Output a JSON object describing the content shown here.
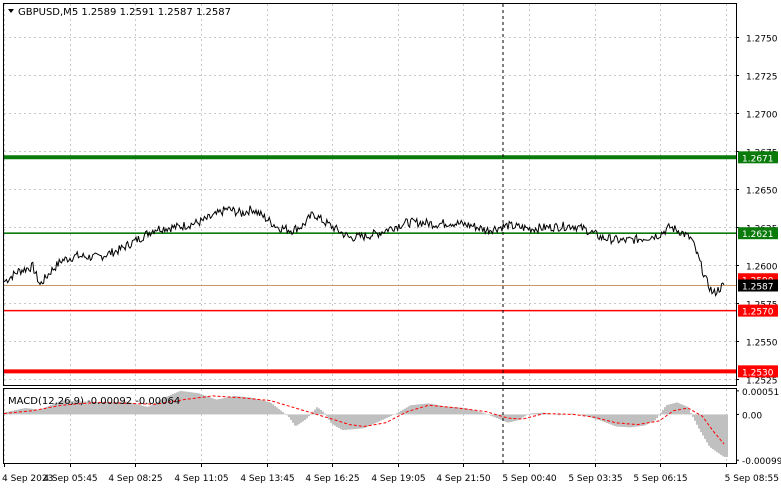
{
  "header": {
    "symbol": "GBPUSD,M5",
    "open": "1.2589",
    "high": "1.2591",
    "low": "1.2587",
    "close": "1.2587"
  },
  "colors": {
    "background": "#ffffff",
    "price_line": "#000000",
    "grid": "#c8c8c8",
    "green_level": "#0a7a0a",
    "red_level": "#ff0000",
    "current_price_line": "#c89a6a",
    "macd_histogram": "#c0c0c0",
    "macd_signal": "#ff0000"
  },
  "chart_data": [
    {
      "type": "line",
      "symbol": "GBPUSD,M5",
      "ylim": [
        1.2521,
        1.2772
      ],
      "y_ticks": [
        "1.2750",
        "1.2725",
        "1.2700",
        "1.2675",
        "1.2650",
        "1.2625",
        "1.2600",
        "1.2575",
        "1.2550",
        "1.2525"
      ],
      "x_ticks": [
        "4 Sep 2023",
        "4 Sep 05:45",
        "4 Sep 08:25",
        "4 Sep 11:05",
        "4 Sep 13:45",
        "4 Sep 16:25",
        "4 Sep 19:05",
        "4 Sep 21:50",
        "5 Sep 00:40",
        "5 Sep 03:35",
        "5 Sep 06:15",
        "5 Sep 08:55"
      ],
      "levels": [
        {
          "label": "1.2671",
          "value": 1.2671,
          "color": "green",
          "style": "thick"
        },
        {
          "label": "1.2621",
          "value": 1.2621,
          "color": "green",
          "style": "thin"
        },
        {
          "label": "1.2570",
          "value": 1.257,
          "color": "red",
          "style": "thin"
        },
        {
          "label": "1.2530",
          "value": 1.253,
          "color": "red",
          "style": "thick"
        }
      ],
      "current_price": {
        "label": "1.2587",
        "value": 1.2587
      },
      "hidden_label": {
        "label": "1.2590",
        "value": 1.259
      },
      "series": [
        {
          "values": [
            [
              0,
              1.2589
            ],
            [
              0.02,
              1.2596
            ],
            [
              0.04,
              1.2599
            ],
            [
              0.05,
              1.2587
            ],
            [
              0.065,
              1.2596
            ],
            [
              0.08,
              1.2603
            ],
            [
              0.1,
              1.2606
            ],
            [
              0.13,
              1.2605
            ],
            [
              0.16,
              1.261
            ],
            [
              0.19,
              1.2618
            ],
            [
              0.21,
              1.2624
            ],
            [
              0.24,
              1.2625
            ],
            [
              0.27,
              1.2628
            ],
            [
              0.29,
              1.2632
            ],
            [
              0.31,
              1.2637
            ],
            [
              0.33,
              1.2634
            ],
            [
              0.345,
              1.2637
            ],
            [
              0.36,
              1.2632
            ],
            [
              0.38,
              1.2625
            ],
            [
              0.4,
              1.2623
            ],
            [
              0.415,
              1.2626
            ],
            [
              0.43,
              1.2634
            ],
            [
              0.44,
              1.263
            ],
            [
              0.46,
              1.2624
            ],
            [
              0.48,
              1.2618
            ],
            [
              0.5,
              1.2619
            ],
            [
              0.52,
              1.2621
            ],
            [
              0.54,
              1.2625
            ],
            [
              0.56,
              1.2628
            ],
            [
              0.58,
              1.2628
            ],
            [
              0.6,
              1.2627
            ],
            [
              0.62,
              1.2628
            ],
            [
              0.65,
              1.2626
            ],
            [
              0.67,
              1.2623
            ],
            [
              0.7,
              1.2626
            ],
            [
              0.73,
              1.2624
            ],
            [
              0.76,
              1.2625
            ],
            [
              0.79,
              1.2626
            ],
            [
              0.81,
              1.2623
            ],
            [
              0.83,
              1.2618
            ],
            [
              0.86,
              1.2616
            ],
            [
              0.88,
              1.2617
            ],
            [
              0.91,
              1.262
            ],
            [
              0.925,
              1.2625
            ],
            [
              0.94,
              1.2622
            ],
            [
              0.955,
              1.2617
            ],
            [
              0.965,
              1.2604
            ],
            [
              0.975,
              1.259
            ],
            [
              0.985,
              1.2581
            ],
            [
              1.0,
              1.2587
            ]
          ]
        }
      ]
    },
    {
      "type": "area",
      "title": "MACD(12,26,9) -0.00092 -0.00064",
      "ylim": [
        -0.00105,
        0.00055
      ],
      "y_ticks": [
        "0.00051",
        "0.00",
        "-0.00099"
      ],
      "series": [
        {
          "name": "histogram",
          "values": [
            [
              0,
              4e-05
            ],
            [
              0.03,
              0.00014
            ],
            [
              0.05,
              0.0001
            ],
            [
              0.08,
              0.0003
            ],
            [
              0.11,
              0.00028
            ],
            [
              0.14,
              0.00026
            ],
            [
              0.17,
              0.00028
            ],
            [
              0.2,
              0.00016
            ],
            [
              0.22,
              0.00034
            ],
            [
              0.245,
              0.00051
            ],
            [
              0.27,
              0.00046
            ],
            [
              0.295,
              0.00032
            ],
            [
              0.32,
              0.0004
            ],
            [
              0.345,
              0.00036
            ],
            [
              0.37,
              0.00026
            ],
            [
              0.395,
              -4e-05
            ],
            [
              0.405,
              -0.00026
            ],
            [
              0.42,
              -0.0001
            ],
            [
              0.435,
              0.00016
            ],
            [
              0.445,
              4e-05
            ],
            [
              0.455,
              -0.0002
            ],
            [
              0.47,
              -0.00034
            ],
            [
              0.485,
              -0.00032
            ],
            [
              0.5,
              -0.0003
            ],
            [
              0.52,
              -0.00016
            ],
            [
              0.545,
              2e-05
            ],
            [
              0.565,
              0.0002
            ],
            [
              0.59,
              0.00024
            ],
            [
              0.61,
              0.00018
            ],
            [
              0.64,
              0.00014
            ],
            [
              0.665,
              4e-05
            ],
            [
              0.685,
              -8e-05
            ],
            [
              0.7,
              -0.00018
            ],
            [
              0.715,
              -0.00012
            ],
            [
              0.73,
              2e-05
            ],
            [
              0.75,
              4e-05
            ],
            [
              0.77,
              -2e-05
            ],
            [
              0.79,
              2e-05
            ],
            [
              0.81,
              -4e-05
            ],
            [
              0.83,
              -0.00014
            ],
            [
              0.85,
              -0.00026
            ],
            [
              0.87,
              -0.00028
            ],
            [
              0.89,
              -0.00024
            ],
            [
              0.905,
              -0.00012
            ],
            [
              0.92,
              0.0002
            ],
            [
              0.935,
              0.00026
            ],
            [
              0.95,
              0.00016
            ],
            [
              0.965,
              -0.0003
            ],
            [
              0.98,
              -0.0007
            ],
            [
              1.0,
              -0.00092
            ]
          ]
        },
        {
          "name": "signal",
          "values": [
            [
              0,
              2e-05
            ],
            [
              0.04,
              8e-05
            ],
            [
              0.08,
              0.0002
            ],
            [
              0.13,
              0.00026
            ],
            [
              0.17,
              0.00024
            ],
            [
              0.21,
              0.00022
            ],
            [
              0.25,
              0.00032
            ],
            [
              0.29,
              0.0004
            ],
            [
              0.33,
              0.00036
            ],
            [
              0.37,
              0.0003
            ],
            [
              0.4,
              0.00016
            ],
            [
              0.43,
              2e-05
            ],
            [
              0.46,
              -0.00012
            ],
            [
              0.48,
              -0.00022
            ],
            [
              0.5,
              -0.00026
            ],
            [
              0.53,
              -0.00018
            ],
            [
              0.56,
              6e-05
            ],
            [
              0.59,
              0.0002
            ],
            [
              0.63,
              0.00014
            ],
            [
              0.67,
              6e-05
            ],
            [
              0.7,
              -8e-05
            ],
            [
              0.72,
              -0.0001
            ],
            [
              0.75,
              2e-05
            ],
            [
              0.79,
              0.0
            ],
            [
              0.82,
              -6e-05
            ],
            [
              0.85,
              -0.00018
            ],
            [
              0.88,
              -0.00022
            ],
            [
              0.91,
              -0.00014
            ],
            [
              0.93,
              8e-05
            ],
            [
              0.95,
              0.00014
            ],
            [
              0.97,
              -4e-05
            ],
            [
              0.985,
              -0.00036
            ],
            [
              1.0,
              -0.00064
            ]
          ]
        }
      ]
    }
  ]
}
